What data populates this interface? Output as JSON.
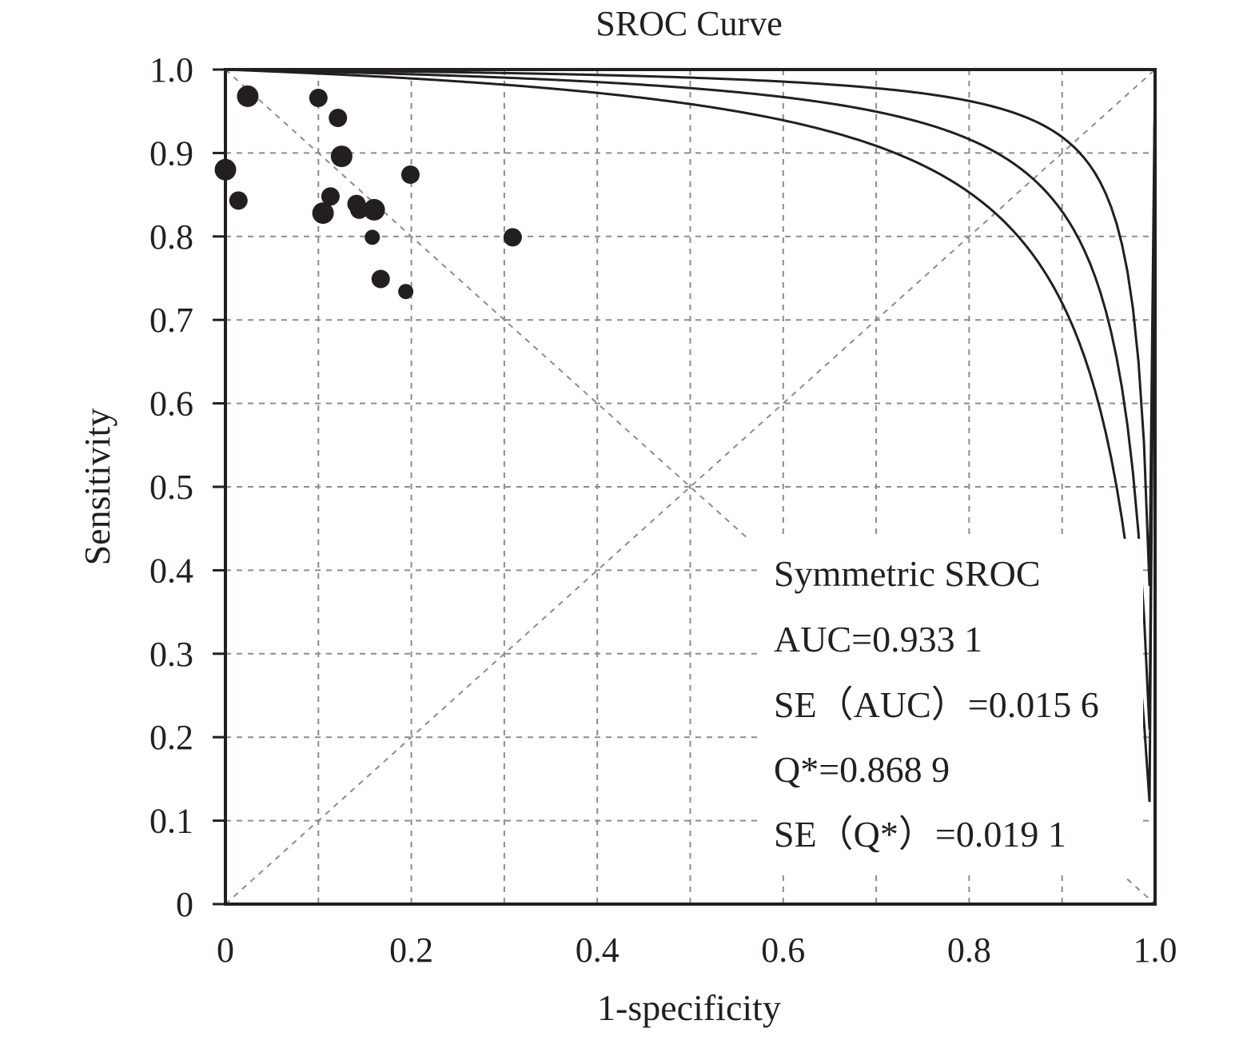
{
  "chart_data": {
    "type": "scatter",
    "title": "SROC Curve",
    "xlabel": "1-specificity",
    "ylabel": "Sensitivity",
    "xlim": [
      0,
      1.0
    ],
    "ylim": [
      0,
      1.0
    ],
    "x_ticks": [
      "0",
      "0.2",
      "0.4",
      "0.6",
      "0.8",
      "1.0"
    ],
    "x_tick_values": [
      0,
      0.2,
      0.4,
      0.6,
      0.8,
      1.0
    ],
    "y_ticks": [
      "0",
      "0.1",
      "0.2",
      "0.3",
      "0.4",
      "0.5",
      "0.6",
      "0.7",
      "0.8",
      "0.9",
      "1.0"
    ],
    "y_tick_values": [
      0,
      0.1,
      0.2,
      0.3,
      0.4,
      0.5,
      0.6,
      0.7,
      0.8,
      0.9,
      1.0
    ],
    "grid": true,
    "points": [
      {
        "x": 0.024,
        "y": 0.968,
        "size": "large"
      },
      {
        "x": 0.0,
        "y": 0.88,
        "size": "large"
      },
      {
        "x": 0.014,
        "y": 0.843,
        "size": "medium"
      },
      {
        "x": 0.1,
        "y": 0.966,
        "size": "medium"
      },
      {
        "x": 0.121,
        "y": 0.942,
        "size": "medium"
      },
      {
        "x": 0.125,
        "y": 0.896,
        "size": "large"
      },
      {
        "x": 0.113,
        "y": 0.848,
        "size": "medium"
      },
      {
        "x": 0.105,
        "y": 0.828,
        "size": "large"
      },
      {
        "x": 0.141,
        "y": 0.839,
        "size": "medium"
      },
      {
        "x": 0.144,
        "y": 0.832,
        "size": "medium"
      },
      {
        "x": 0.16,
        "y": 0.832,
        "size": "large"
      },
      {
        "x": 0.158,
        "y": 0.799,
        "size": "small"
      },
      {
        "x": 0.199,
        "y": 0.874,
        "size": "medium"
      },
      {
        "x": 0.167,
        "y": 0.749,
        "size": "medium"
      },
      {
        "x": 0.194,
        "y": 0.734,
        "size": "small"
      },
      {
        "x": 0.309,
        "y": 0.799,
        "size": "medium"
      }
    ],
    "curves_Q": [
      0.91,
      0.8689,
      0.828
    ],
    "annotations": [
      "Symmetric SROC",
      "AUC=0.933 1",
      "SE（AUC）=0.015 6",
      "Q*=0.868 9",
      "SE（Q*）=0.019 1"
    ],
    "colors": {
      "ink": "#231f20",
      "grid": "#8c8c8c"
    }
  }
}
